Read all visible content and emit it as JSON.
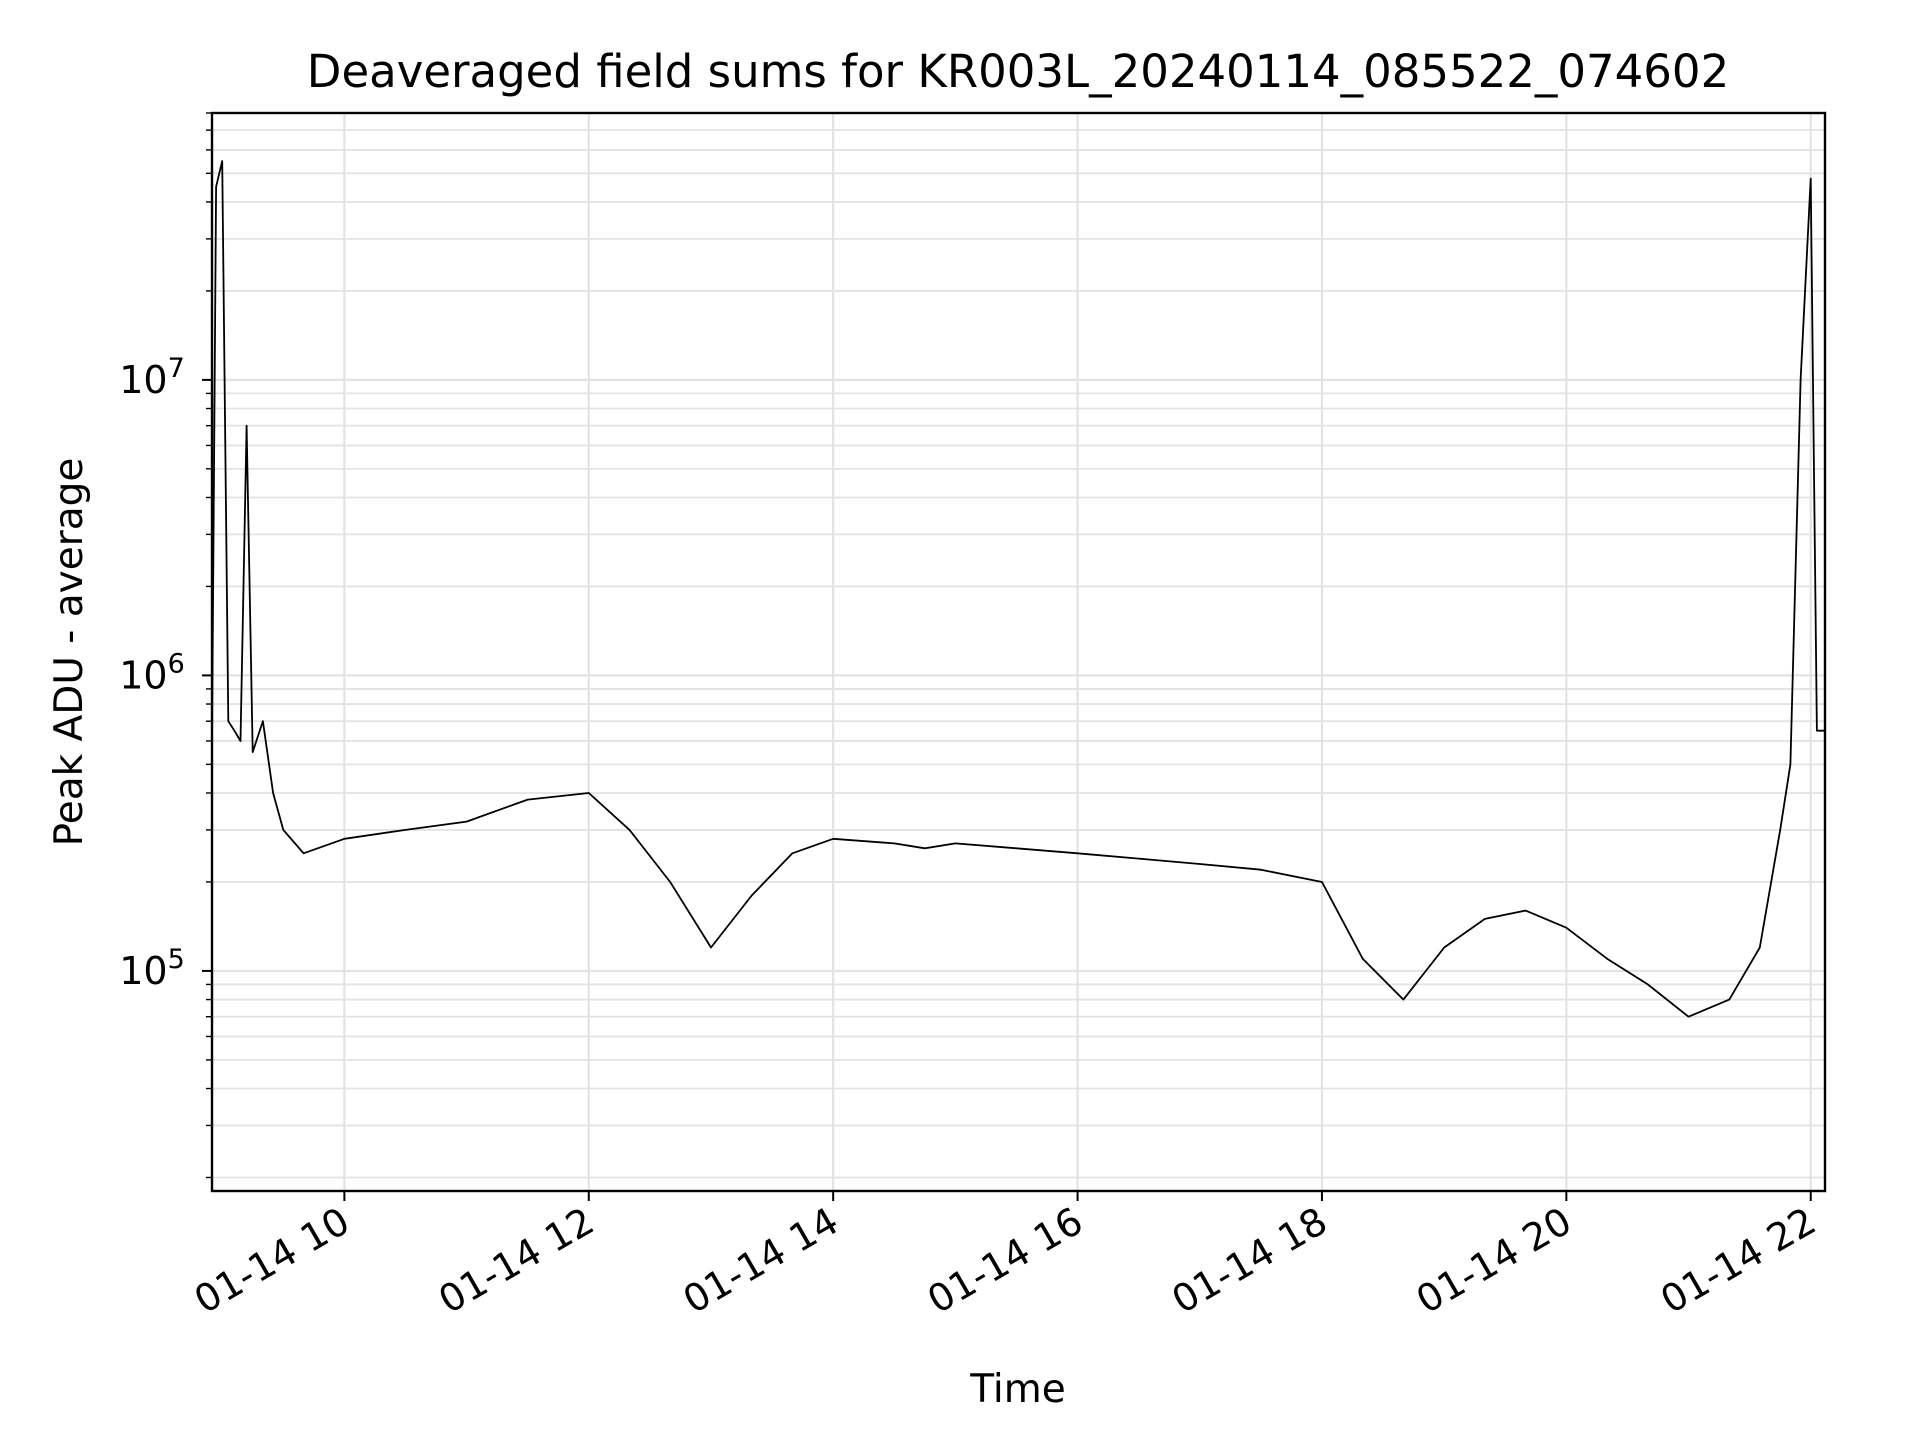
{
  "chart_data": {
    "type": "line",
    "title": "Deaveraged field sums for KR003L_20240114_085522_074602",
    "xlabel": "Time",
    "ylabel": "Peak ADU - average",
    "yscale": "log",
    "ylim": [
      18000,
      80000000
    ],
    "xlim": [
      "2024-01-14 08:55",
      "2024-01-14 22:07"
    ],
    "grid": true,
    "line_color": "#000000",
    "x_ticks": [
      {
        "value": "2024-01-14 10:00",
        "label": "01-14 10"
      },
      {
        "value": "2024-01-14 12:00",
        "label": "01-14 12"
      },
      {
        "value": "2024-01-14 14:00",
        "label": "01-14 14"
      },
      {
        "value": "2024-01-14 16:00",
        "label": "01-14 16"
      },
      {
        "value": "2024-01-14 18:00",
        "label": "01-14 18"
      },
      {
        "value": "2024-01-14 20:00",
        "label": "01-14 20"
      },
      {
        "value": "2024-01-14 22:00",
        "label": "01-14 22"
      }
    ],
    "y_ticks": [
      {
        "value": 100000,
        "base": "10",
        "exp": "5"
      },
      {
        "value": 1000000,
        "base": "10",
        "exp": "6"
      },
      {
        "value": 10000000,
        "base": "10",
        "exp": "7"
      }
    ],
    "series": [
      {
        "x": [
          "2024-01-14 08:55",
          "2024-01-14 08:57",
          "2024-01-14 09:00",
          "2024-01-14 09:03",
          "2024-01-14 09:06",
          "2024-01-14 09:09",
          "2024-01-14 09:12",
          "2024-01-14 09:15",
          "2024-01-14 09:20",
          "2024-01-14 09:25",
          "2024-01-14 09:30",
          "2024-01-14 09:40",
          "2024-01-14 10:00",
          "2024-01-14 10:30",
          "2024-01-14 11:00",
          "2024-01-14 11:30",
          "2024-01-14 12:00",
          "2024-01-14 12:20",
          "2024-01-14 12:40",
          "2024-01-14 13:00",
          "2024-01-14 13:20",
          "2024-01-14 13:40",
          "2024-01-14 14:00",
          "2024-01-14 14:30",
          "2024-01-14 14:45",
          "2024-01-14 15:00",
          "2024-01-14 15:30",
          "2024-01-14 16:00",
          "2024-01-14 16:30",
          "2024-01-14 17:00",
          "2024-01-14 17:30",
          "2024-01-14 18:00",
          "2024-01-14 18:20",
          "2024-01-14 18:40",
          "2024-01-14 19:00",
          "2024-01-14 19:20",
          "2024-01-14 19:40",
          "2024-01-14 20:00",
          "2024-01-14 20:20",
          "2024-01-14 20:40",
          "2024-01-14 21:00",
          "2024-01-14 21:20",
          "2024-01-14 21:35",
          "2024-01-14 21:45",
          "2024-01-14 21:50",
          "2024-01-14 21:55",
          "2024-01-14 22:00",
          "2024-01-14 22:03",
          "2024-01-14 22:07"
        ],
        "y": [
          600000,
          45000000,
          55000000,
          700000,
          650000,
          600000,
          7000000,
          550000,
          700000,
          400000,
          300000,
          250000,
          280000,
          300000,
          320000,
          380000,
          400000,
          300000,
          200000,
          120000,
          180000,
          250000,
          280000,
          270000,
          260000,
          270000,
          260000,
          250000,
          240000,
          230000,
          220000,
          200000,
          110000,
          80000,
          120000,
          150000,
          160000,
          140000,
          110000,
          90000,
          70000,
          80000,
          120000,
          300000,
          500000,
          10000000,
          48000000,
          650000,
          650000
        ]
      }
    ]
  }
}
